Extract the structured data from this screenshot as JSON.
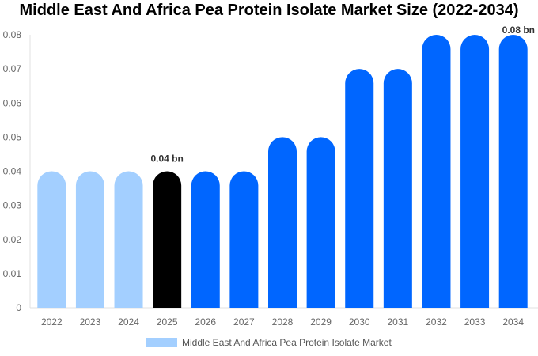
{
  "chart_data": {
    "type": "bar",
    "title": "Middle East And Africa Pea Protein Isolate Market Size (2022-2034)",
    "categories": [
      "2022",
      "2023",
      "2024",
      "2025",
      "2026",
      "2027",
      "2028",
      "2029",
      "2030",
      "2031",
      "2032",
      "2033",
      "2034"
    ],
    "series": [
      {
        "name": "Middle East And Africa Pea Protein Isolate Market",
        "values": [
          0.04,
          0.04,
          0.04,
          0.04,
          0.04,
          0.04,
          0.05,
          0.05,
          0.07,
          0.07,
          0.08,
          0.08,
          0.08
        ]
      }
    ],
    "yticks": [
      "0",
      "0.01",
      "0.02",
      "0.03",
      "0.04",
      "0.05",
      "0.06",
      "0.07",
      "0.08"
    ],
    "ylim": [
      0,
      0.08
    ],
    "data_labels": [
      {
        "index": 3,
        "text": "0.04 bn"
      },
      {
        "index": 12,
        "text": "0.08 bn"
      }
    ],
    "colors": {
      "historical": "#a3cfff",
      "highlight": "#000000",
      "forecast": "#0066ff"
    },
    "legend": "bottom",
    "grid": false
  }
}
